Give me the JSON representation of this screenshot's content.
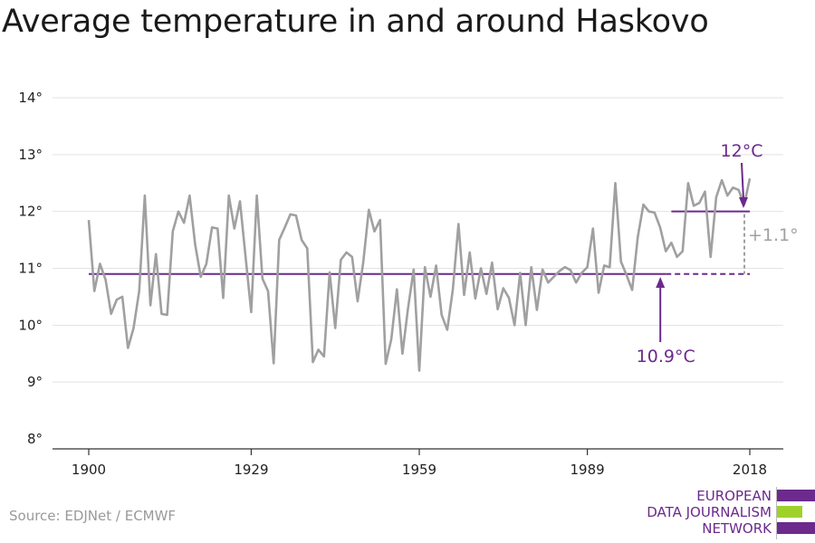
{
  "title": "Average temperature in and around Haskovo",
  "source": "Source: EDJNet / ECMWF",
  "logo": {
    "line1": "EUROPEAN",
    "line2": "DATA JOURNALISM",
    "line3": "NETWORK",
    "colors": {
      "purple": "#6b2a8c",
      "green": "#9ed22b"
    }
  },
  "chart_data": {
    "type": "line",
    "title": "Average temperature in and around Haskovo",
    "xlabel": "",
    "ylabel": "",
    "xlim": [
      1900,
      2018
    ],
    "ylim": [
      8,
      14
    ],
    "grid": true,
    "x_ticks": [
      {
        "value": 1900,
        "label": "1900"
      },
      {
        "value": 1929,
        "label": "1929"
      },
      {
        "value": 1959,
        "label": "1959"
      },
      {
        "value": 1989,
        "label": "1989"
      },
      {
        "value": 2018,
        "label": "2018"
      }
    ],
    "y_ticks": [
      {
        "value": 8,
        "label": "8°"
      },
      {
        "value": 9,
        "label": "9°"
      },
      {
        "value": 10,
        "label": "10°"
      },
      {
        "value": 11,
        "label": "11°"
      },
      {
        "value": 12,
        "label": "12°"
      },
      {
        "value": 13,
        "label": "13°"
      },
      {
        "value": 14,
        "label": "14°"
      }
    ],
    "series": [
      {
        "color": "#a0a0a0",
        "x_start": 1900,
        "values": [
          11.85,
          10.6,
          11.08,
          10.8,
          10.2,
          10.45,
          10.5,
          9.6,
          9.95,
          10.6,
          12.28,
          10.35,
          11.25,
          10.2,
          10.18,
          11.65,
          12.0,
          11.8,
          12.28,
          11.42,
          10.85,
          11.08,
          11.72,
          11.7,
          10.48,
          12.28,
          11.7,
          12.18,
          11.2,
          10.23,
          12.28,
          10.82,
          10.6,
          9.33,
          11.5,
          11.72,
          11.95,
          11.93,
          11.5,
          11.35,
          9.35,
          9.57,
          9.45,
          10.93,
          9.95,
          11.15,
          11.28,
          11.2,
          10.42,
          11.1,
          12.03,
          11.65,
          11.85,
          9.32,
          9.75,
          10.63,
          9.5,
          10.3,
          10.98,
          9.2,
          11.02,
          10.5,
          11.05,
          10.18,
          9.92,
          10.63,
          11.78,
          10.53,
          11.28,
          10.47,
          11.0,
          10.55,
          11.1,
          10.28,
          10.65,
          10.48,
          10.0,
          10.92,
          10.0,
          11.02,
          10.27,
          10.98,
          10.75,
          10.85,
          10.95,
          11.02,
          10.97,
          10.75,
          10.92,
          11.02,
          11.7,
          10.57,
          11.05,
          11.02,
          12.5,
          11.12,
          10.88,
          10.62,
          11.55,
          12.12,
          12.0,
          11.98,
          11.72,
          11.3,
          11.45,
          11.2,
          11.3,
          12.5,
          12.1,
          12.15,
          12.35,
          11.2,
          12.25,
          12.55,
          12.28,
          12.42,
          12.38,
          12.12,
          12.58
        ]
      }
    ],
    "reference_lines": [
      {
        "label": "10.9°C",
        "value": 10.9,
        "color": "#6b2a8c"
      },
      {
        "label": "12°C",
        "value": 12.0,
        "color": "#6b2a8c"
      }
    ],
    "annotations": [
      {
        "text": "12°C",
        "color": "#6b2a8c"
      },
      {
        "text": "10.9°C",
        "color": "#6b2a8c"
      },
      {
        "text": "+1.1°",
        "color": "#a0a0a0"
      }
    ]
  }
}
